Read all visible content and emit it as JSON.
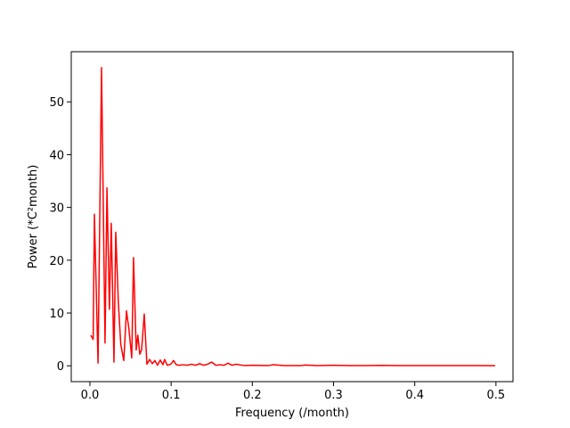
{
  "chart_data": {
    "type": "line",
    "xlabel": "Frequency (/month)",
    "ylabel": "Power (*C²month)",
    "x": [
      0.001,
      0.004,
      0.0055,
      0.01,
      0.0143,
      0.0186,
      0.021,
      0.024,
      0.0263,
      0.0296,
      0.0318,
      0.035,
      0.038,
      0.0417,
      0.045,
      0.048,
      0.0515,
      0.0537,
      0.057,
      0.059,
      0.0614,
      0.0636,
      0.0669,
      0.0702,
      0.0735,
      0.0768,
      0.08,
      0.0833,
      0.0866,
      0.0899,
      0.092,
      0.0953,
      0.0996,
      0.103,
      0.1064,
      0.11,
      0.115,
      0.12,
      0.125,
      0.13,
      0.135,
      0.14,
      0.145,
      0.15,
      0.155,
      0.16,
      0.165,
      0.17,
      0.175,
      0.18,
      0.19,
      0.2,
      0.22,
      0.225,
      0.24,
      0.26,
      0.265,
      0.28,
      0.3,
      0.32,
      0.34,
      0.36,
      0.38,
      0.4,
      0.42,
      0.44,
      0.46,
      0.48,
      0.499
    ],
    "values": [
      5.8,
      5.0,
      28.7,
      0.5,
      56.5,
      4.3,
      33.7,
      10.7,
      27,
      0.7,
      25.3,
      12,
      4,
      1.0,
      10.4,
      7,
      1.5,
      20.5,
      3,
      5.8,
      2.2,
      3,
      9.8,
      0.3,
      1.2,
      0.4,
      1.0,
      0.1,
      1.1,
      0.2,
      1.2,
      0.1,
      0.3,
      1.0,
      0.2,
      0.1,
      0.2,
      0.1,
      0.3,
      0.1,
      0.4,
      0.1,
      0.3,
      0.7,
      0.1,
      0.2,
      0.1,
      0.5,
      0.1,
      0.3,
      0.05,
      0.1,
      0.05,
      0.2,
      0.05,
      0.05,
      0.15,
      0.05,
      0.1,
      0.05,
      0.05,
      0.08,
      0.03,
      0.05,
      0.03,
      0.05,
      0.03,
      0.03,
      0.02
    ],
    "color": "#ff0000",
    "xlim": [
      -0.023,
      0.521
    ],
    "xticks": [
      {
        "value": 0,
        "label": "0.0"
      },
      0.1,
      0.2,
      0.3,
      0.4,
      0.5
    ],
    "ylim": [
      -3.0,
      59.5
    ],
    "yticks": [
      0,
      10,
      20,
      30,
      40,
      50
    ]
  }
}
